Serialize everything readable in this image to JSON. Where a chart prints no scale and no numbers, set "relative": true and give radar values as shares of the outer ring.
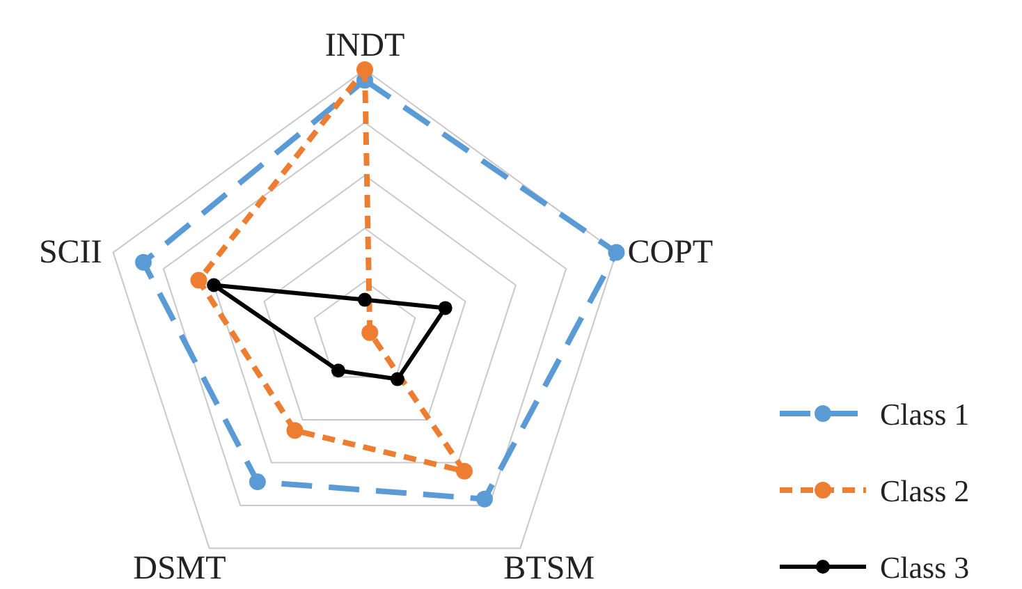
{
  "chart_data": {
    "type": "radar",
    "relative": true,
    "categories": [
      "INDT",
      "COPT",
      "BTSM",
      "DSMT",
      "SCII"
    ],
    "grid": true,
    "legend": "bottom right",
    "marker": "circle",
    "series": [
      {
        "name": "Class 1",
        "color": "#5b9bd5",
        "line_style": "dashed",
        "values": [
          0.96,
          1.0,
          0.77,
          0.69,
          0.88
        ]
      },
      {
        "name": "Class 2",
        "color": "#ed7d31",
        "line_style": "dashed",
        "values": [
          1.0,
          0.02,
          0.64,
          0.45,
          0.66
        ]
      },
      {
        "name": "Class 3",
        "color": "#000000",
        "line_style": "solid",
        "values": [
          0.13,
          0.32,
          0.21,
          0.17,
          0.6
        ]
      }
    ]
  }
}
